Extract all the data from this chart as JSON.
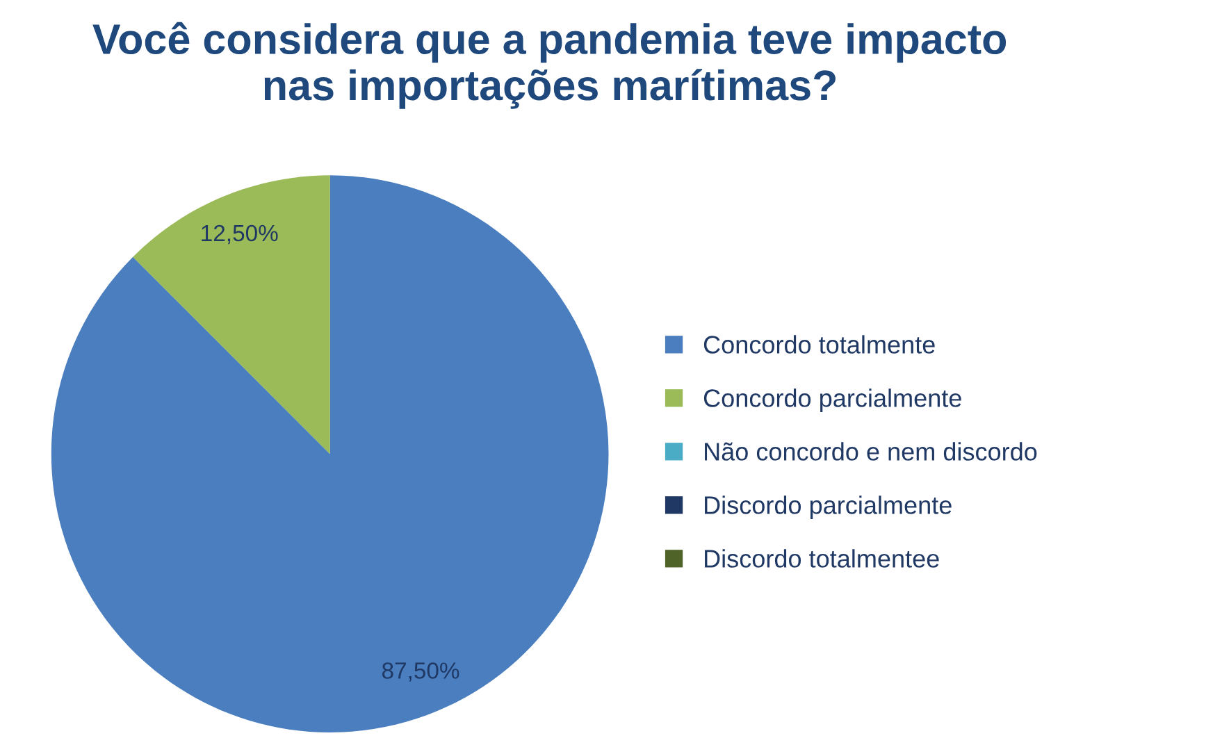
{
  "chart_data": {
    "type": "pie",
    "title": "Você considera que a pandemia teve impacto\nnas importações marítimas?",
    "categories": [
      "Concordo totalmente",
      "Concordo parcialmente",
      "Não concordo e nem discordo",
      "Discordo parcialmente",
      "Discordo totalmentee"
    ],
    "values": [
      87.5,
      12.5,
      0,
      0,
      0
    ],
    "value_labels": [
      "87,50%",
      "12,50%",
      null,
      null,
      null
    ],
    "colors": [
      "#4a7ebf",
      "#9bbb59",
      "#4bacc6",
      "#1f3864",
      "#4f6228"
    ],
    "legend": "right"
  }
}
